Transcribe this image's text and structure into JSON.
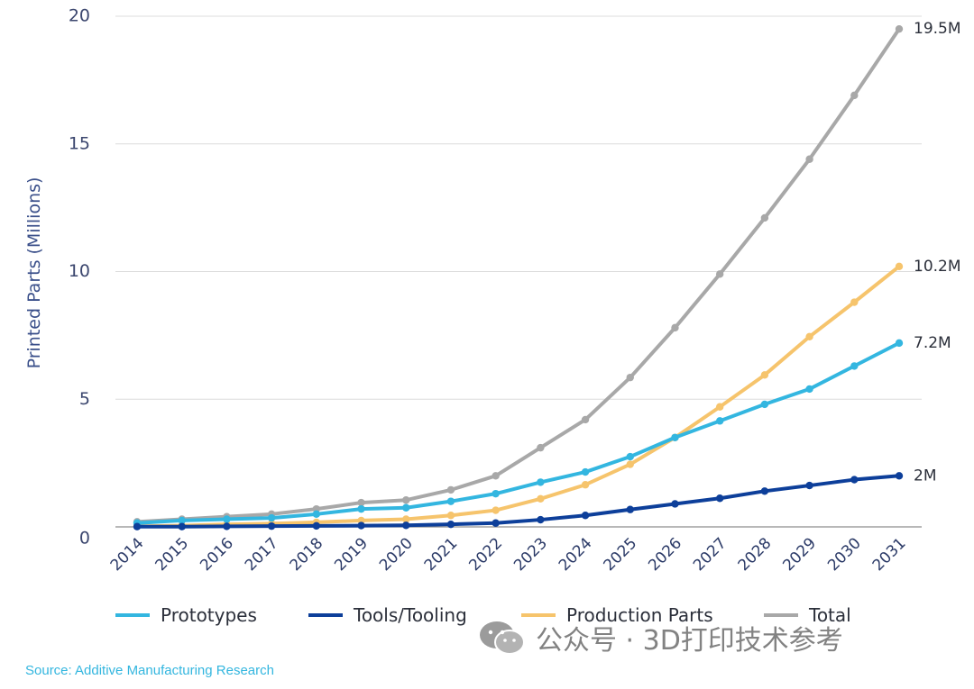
{
  "chart_data": {
    "type": "line",
    "title": "",
    "xlabel": "",
    "ylabel": "Printed Parts (Millions)",
    "ylim": [
      0,
      20
    ],
    "yticks": [
      0,
      5,
      10,
      15,
      20
    ],
    "grid": true,
    "legend_position": "bottom",
    "categories": [
      "2014",
      "2015",
      "2016",
      "2017",
      "2018",
      "2019",
      "2020",
      "2021",
      "2022",
      "2023",
      "2024",
      "2025",
      "2026",
      "2027",
      "2028",
      "2029",
      "2030",
      "2031"
    ],
    "series": [
      {
        "name": "Total",
        "color": "#a8a8a8",
        "values": [
          0.2,
          0.3,
          0.4,
          0.5,
          0.7,
          0.95,
          1.05,
          1.45,
          2.0,
          3.1,
          4.2,
          5.85,
          7.8,
          9.9,
          12.1,
          14.4,
          16.9,
          19.5
        ],
        "end_label": "19.5M"
      },
      {
        "name": "Production Parts",
        "color": "#f6c46c",
        "values": [
          0.02,
          0.05,
          0.1,
          0.13,
          0.18,
          0.25,
          0.3,
          0.45,
          0.65,
          1.1,
          1.65,
          2.45,
          3.5,
          4.7,
          5.95,
          7.45,
          8.8,
          10.2
        ],
        "end_label": "10.2M"
      },
      {
        "name": "Prototypes",
        "color": "#33b6e0",
        "values": [
          0.15,
          0.25,
          0.3,
          0.35,
          0.5,
          0.7,
          0.75,
          1.0,
          1.3,
          1.75,
          2.15,
          2.75,
          3.5,
          4.15,
          4.8,
          5.4,
          6.3,
          7.2
        ],
        "end_label": "7.2M"
      },
      {
        "name": "Tools/Tooling",
        "color": "#0d3f9a",
        "values": [
          0.01,
          0.01,
          0.02,
          0.03,
          0.04,
          0.05,
          0.06,
          0.1,
          0.15,
          0.28,
          0.45,
          0.68,
          0.9,
          1.12,
          1.4,
          1.62,
          1.85,
          2.0
        ],
        "end_label": "2M"
      }
    ],
    "legend": [
      {
        "label": "Prototypes",
        "color": "#33b6e0"
      },
      {
        "label": "Tools/Tooling",
        "color": "#0d3f9a"
      },
      {
        "label": "Production Parts",
        "color": "#f6c46c"
      },
      {
        "label": "Total",
        "color": "#a8a8a8"
      }
    ]
  },
  "source_text": "Source: Additive Manufacturing Research",
  "watermark": {
    "text": "公众号 · 3D打印技术参考"
  }
}
